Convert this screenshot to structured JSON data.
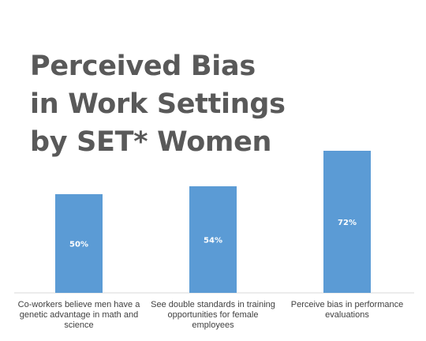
{
  "chart_data": {
    "type": "bar",
    "title_lines": [
      "Perceived Bias",
      "in Work Settings",
      "by SET* Women"
    ],
    "categories": [
      "Co-workers believe men have a genetic advantage in math and science",
      "See double standards in training opportunities for female employees",
      "Perceive bias in performance evaluations"
    ],
    "values": [
      50,
      54,
      72
    ],
    "data_labels": [
      "50%",
      "54%",
      "72%"
    ],
    "ylim": [
      0,
      100
    ],
    "bar_color": "#5b9bd5",
    "grid": false,
    "legend": "none"
  }
}
